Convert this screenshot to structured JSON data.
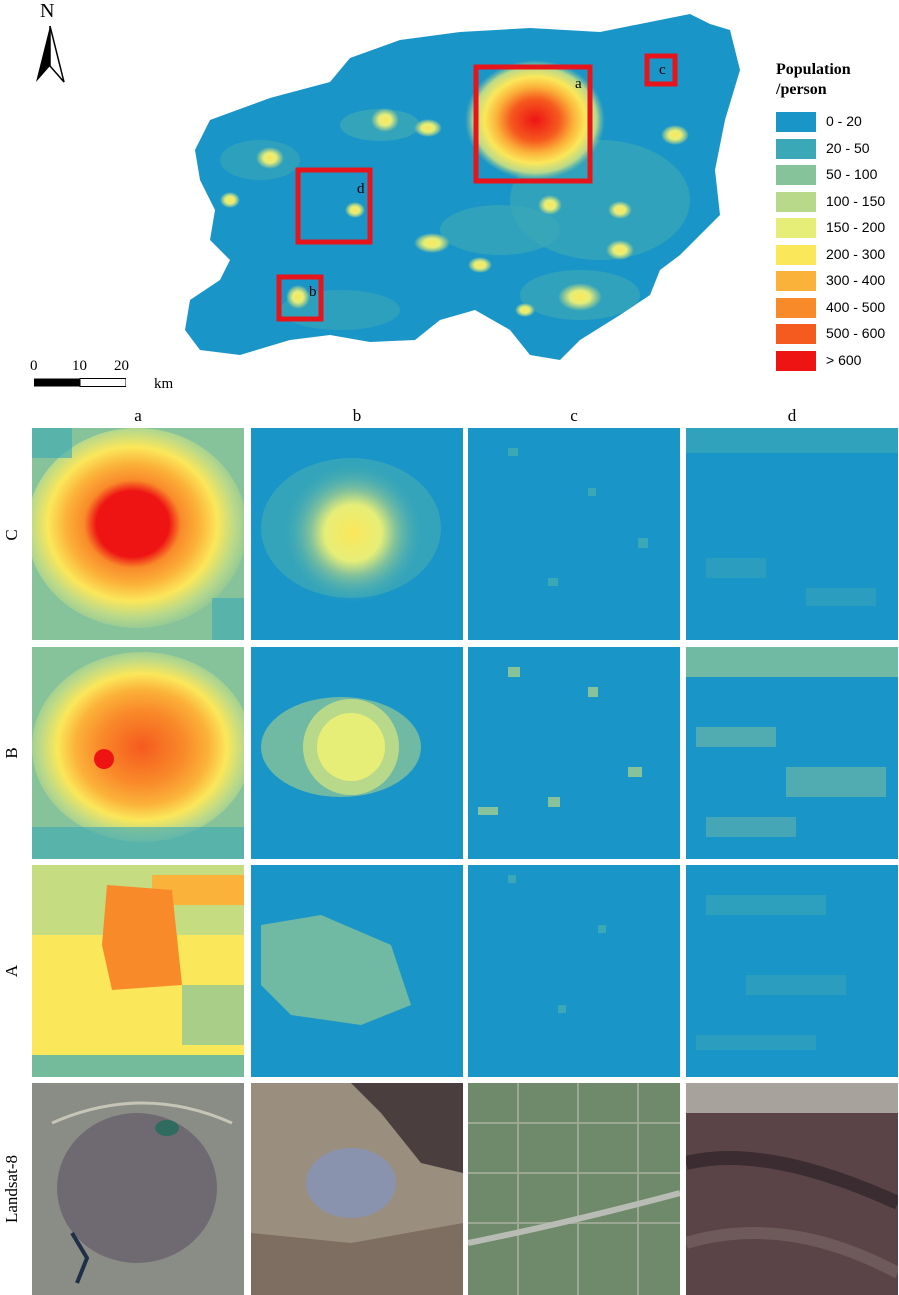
{
  "north_arrow": {
    "letter": "N"
  },
  "scale_bar": {
    "ticks": [
      "0",
      "10",
      "20"
    ],
    "unit": "km"
  },
  "overview_map": {
    "box_labels": [
      "a",
      "b",
      "c",
      "d"
    ]
  },
  "legend": {
    "title_line1": "Population",
    "title_line2": "/person",
    "classes": [
      {
        "label": "0 - 20",
        "color": "#1a95c8"
      },
      {
        "label": "20 - 50",
        "color": "#3ba8b7"
      },
      {
        "label": "50 - 100",
        "color": "#86c39a"
      },
      {
        "label": "100 - 150",
        "color": "#b9d98a"
      },
      {
        "label": "150 - 200",
        "color": "#e6ee78"
      },
      {
        "label": "200 - 300",
        "color": "#fbe75a"
      },
      {
        "label": "300 - 400",
        "color": "#fbb23a"
      },
      {
        "label": "400 - 500",
        "color": "#f98a2a"
      },
      {
        "label": "500 - 600",
        "color": "#f55a1e"
      },
      {
        "label": "> 600",
        "color": "#ee1414"
      }
    ]
  },
  "grid": {
    "columns": [
      "a",
      "b",
      "c",
      "d"
    ],
    "rows": [
      "C",
      "B",
      "A",
      "Landsat-8"
    ]
  },
  "highlight_box_color": "#e8141c"
}
